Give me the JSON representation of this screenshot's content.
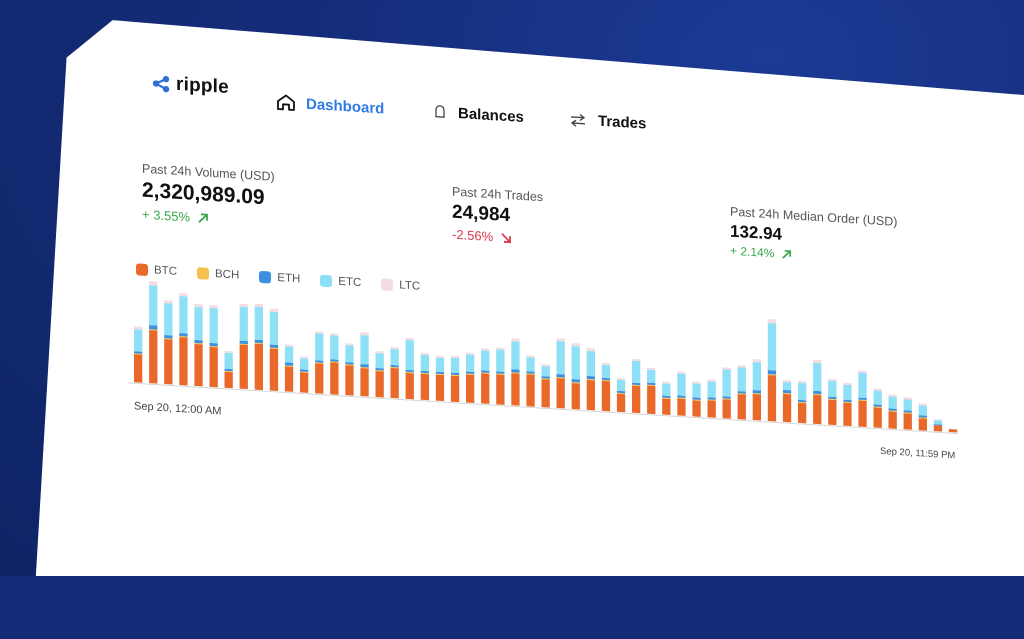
{
  "brand": {
    "name": "ripple"
  },
  "nav": [
    {
      "label": "Dashboard",
      "icon": "home-icon",
      "active": true
    },
    {
      "label": "Balances",
      "icon": "bell-icon",
      "active": false
    },
    {
      "label": "Trades",
      "icon": "swap-arrows-icon",
      "active": false
    }
  ],
  "stats": [
    {
      "label": "Past 24h Volume (USD)",
      "value": "2,320,989.09",
      "change": "+ 3.55%",
      "direction": "up"
    },
    {
      "label": "Past 24h Trades",
      "value": "24,984",
      "change": "-2.56%",
      "direction": "down"
    },
    {
      "label": "Past 24h Median Order (USD)",
      "value": "132.94",
      "change": "+ 2.14%",
      "direction": "up"
    }
  ],
  "colors": {
    "BTC": "#e8692a",
    "BCH": "#f5c04d",
    "ETH": "#3d8fe0",
    "ETC": "#8ee0f7",
    "LTC": "#f3dde3",
    "accent": "#2f7be8",
    "up": "#3aa84a",
    "down": "#d83a4e"
  },
  "chart_data": {
    "type": "bar",
    "stacked": true,
    "legend": [
      "BTC",
      "BCH",
      "ETH",
      "ETC",
      "LTC"
    ],
    "x_start_label": "Sep 20, 12:00 AM",
    "x_end_label": "Sep 20, 11:59 PM",
    "series": [
      {
        "name": "BTC",
        "values": [
          28,
          53,
          45,
          48,
          42,
          40,
          16,
          44,
          46,
          42,
          25,
          20,
          30,
          32,
          30,
          28,
          26,
          30,
          26,
          26,
          26,
          26,
          28,
          30,
          30,
          32,
          32,
          28,
          30,
          26,
          30,
          30,
          18,
          27,
          28,
          16,
          17,
          16,
          17,
          19,
          25,
          26,
          46,
          28,
          20,
          29,
          25,
          23,
          26,
          20,
          17,
          16,
          12,
          6,
          3
        ]
      },
      {
        "name": "BCH",
        "values": [
          1,
          1,
          1,
          1,
          1,
          1,
          1,
          1,
          1,
          1,
          1,
          1,
          1,
          1,
          1,
          1,
          1,
          1,
          1,
          1,
          1,
          1,
          1,
          1,
          1,
          1,
          1,
          1,
          1,
          1,
          1,
          1,
          1,
          1,
          1,
          1,
          1,
          1,
          1,
          1,
          1,
          1,
          1,
          1,
          1,
          1,
          1,
          1,
          1,
          1,
          1,
          1,
          1,
          0,
          0
        ]
      },
      {
        "name": "ETH",
        "values": [
          2,
          4,
          3,
          3,
          3,
          3,
          2,
          3,
          3,
          3,
          3,
          2,
          2,
          2,
          2,
          3,
          2,
          2,
          2,
          2,
          2,
          2,
          2,
          2,
          2,
          3,
          2,
          2,
          3,
          3,
          3,
          2,
          2,
          2,
          2,
          2,
          2,
          2,
          2,
          2,
          2,
          3,
          4,
          3,
          2,
          3,
          2,
          2,
          2,
          2,
          2,
          2,
          2,
          1,
          0
        ]
      },
      {
        "name": "ETC",
        "values": [
          22,
          40,
          32,
          37,
          33,
          35,
          16,
          34,
          33,
          33,
          16,
          11,
          27,
          24,
          17,
          29,
          15,
          16,
          30,
          16,
          14,
          15,
          17,
          20,
          22,
          28,
          14,
          10,
          33,
          33,
          25,
          13,
          11,
          22,
          13,
          12,
          22,
          14,
          16,
          27,
          24,
          28,
          47,
          8,
          17,
          28,
          16,
          15,
          25,
          14,
          12,
          11,
          10,
          4,
          0
        ]
      },
      {
        "name": "LTC",
        "values": [
          3,
          4,
          3,
          3,
          3,
          3,
          2,
          3,
          3,
          3,
          2,
          2,
          2,
          2,
          2,
          3,
          2,
          2,
          2,
          2,
          2,
          2,
          2,
          2,
          2,
          3,
          2,
          2,
          3,
          3,
          3,
          2,
          2,
          2,
          2,
          2,
          2,
          2,
          2,
          2,
          2,
          3,
          4,
          2,
          2,
          3,
          2,
          2,
          2,
          2,
          2,
          2,
          2,
          1,
          0
        ]
      }
    ]
  }
}
